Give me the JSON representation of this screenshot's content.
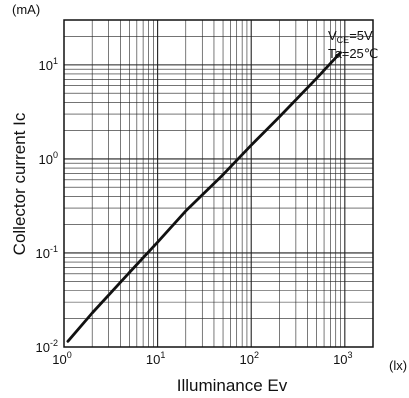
{
  "chart_data": {
    "type": "line",
    "title": "",
    "xlabel": "Illuminance   Ev",
    "ylabel": "Collector current   Ic",
    "x_unit": "(lx)",
    "y_unit": "(mA)",
    "x_scale": "log",
    "y_scale": "log",
    "xlim": [
      1,
      2000
    ],
    "ylim": [
      0.01,
      30
    ],
    "grid": true,
    "x_ticks": [
      {
        "value": 1,
        "base": "10",
        "exp": "0"
      },
      {
        "value": 10,
        "base": "10",
        "exp": "1"
      },
      {
        "value": 100,
        "base": "10",
        "exp": "2"
      },
      {
        "value": 1000,
        "base": "10",
        "exp": "3"
      }
    ],
    "y_ticks": [
      {
        "value": 0.01,
        "base": "10",
        "exp": "-2"
      },
      {
        "value": 0.1,
        "base": "10",
        "exp": "-1"
      },
      {
        "value": 1,
        "base": "10",
        "exp": "0"
      },
      {
        "value": 10,
        "base": "10",
        "exp": "1"
      }
    ],
    "conditions": {
      "vce_prefix": "V",
      "vce_sub": "CE",
      "vce_value": "=5V",
      "ta": "Ta=25℃"
    },
    "series": [
      {
        "color": "#111111",
        "x": [
          1.1,
          2,
          5,
          10,
          20,
          50,
          100,
          200,
          500,
          900
        ],
        "y": [
          0.0115,
          0.023,
          0.062,
          0.13,
          0.28,
          0.68,
          1.4,
          2.8,
          7.2,
          13.5
        ]
      }
    ]
  }
}
